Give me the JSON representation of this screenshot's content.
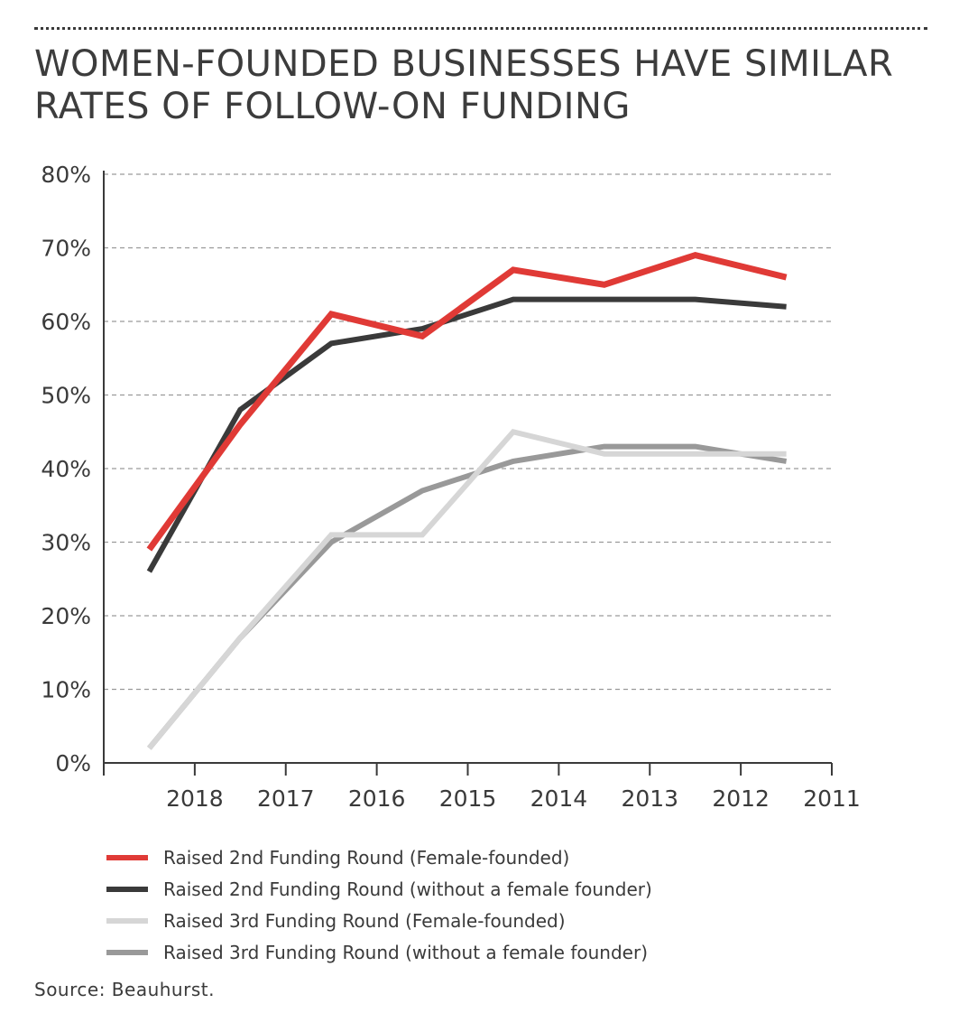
{
  "title": "WOMEN-FOUNDED BUSINESSES HAVE SIMILAR RATES OF FOLLOW-ON FUNDING",
  "source": "Source: Beauhurst.",
  "chart_data": {
    "type": "line",
    "title": "WOMEN-FOUNDED BUSINESSES HAVE SIMILAR RATES OF FOLLOW-ON FUNDING",
    "xlabel": "",
    "ylabel": "",
    "x_tick_labels": [
      "2018",
      "2017",
      "2016",
      "2015",
      "2014",
      "2013",
      "2012",
      "2011"
    ],
    "y_tick_labels": [
      "0%",
      "10%",
      "20%",
      "30%",
      "40%",
      "50%",
      "60%",
      "70%",
      "80%"
    ],
    "y_ticks": [
      0,
      10,
      20,
      30,
      40,
      50,
      60,
      70,
      80
    ],
    "ylim": [
      0,
      80
    ],
    "y_unit": "%",
    "x_axis_direction": "descending years left to right",
    "grid": "horizontal dashed",
    "legend_position": "bottom",
    "series": [
      {
        "name": "Raised 2nd Funding Round (Female-founded)",
        "color": "#e03a36",
        "points": [
          {
            "x": 2018.5,
            "y": 29
          },
          {
            "x": 2017.5,
            "y": 46
          },
          {
            "x": 2016.5,
            "y": 61
          },
          {
            "x": 2015.5,
            "y": 58
          },
          {
            "x": 2014.5,
            "y": 67
          },
          {
            "x": 2013.5,
            "y": 65
          },
          {
            "x": 2012.5,
            "y": 69
          },
          {
            "x": 2011.5,
            "y": 66
          }
        ]
      },
      {
        "name": "Raised 2nd Funding Round (without a female founder)",
        "color": "#3a3a3a",
        "points": [
          {
            "x": 2018.5,
            "y": 26
          },
          {
            "x": 2017.5,
            "y": 48
          },
          {
            "x": 2016.5,
            "y": 57
          },
          {
            "x": 2015.5,
            "y": 59
          },
          {
            "x": 2014.5,
            "y": 63
          },
          {
            "x": 2013.5,
            "y": 63
          },
          {
            "x": 2012.5,
            "y": 63
          },
          {
            "x": 2011.5,
            "y": 62
          }
        ]
      },
      {
        "name": "Raised 3rd Funding Round (Female-founded)",
        "color": "#d6d6d6",
        "points": [
          {
            "x": 2018.5,
            "y": 2
          },
          {
            "x": 2017.5,
            "y": 17
          },
          {
            "x": 2016.5,
            "y": 31
          },
          {
            "x": 2015.5,
            "y": 31
          },
          {
            "x": 2014.5,
            "y": 45
          },
          {
            "x": 2013.5,
            "y": 42
          },
          {
            "x": 2012.5,
            "y": 42
          },
          {
            "x": 2011.5,
            "y": 42
          }
        ]
      },
      {
        "name": "Raised 3rd Funding Round (without a female founder)",
        "color": "#999999",
        "points": [
          {
            "x": 2018.5,
            "y": 2
          },
          {
            "x": 2017.5,
            "y": 17
          },
          {
            "x": 2016.5,
            "y": 30
          },
          {
            "x": 2015.5,
            "y": 37
          },
          {
            "x": 2014.5,
            "y": 41
          },
          {
            "x": 2013.5,
            "y": 43
          },
          {
            "x": 2012.5,
            "y": 43
          },
          {
            "x": 2011.5,
            "y": 41
          }
        ]
      }
    ]
  }
}
